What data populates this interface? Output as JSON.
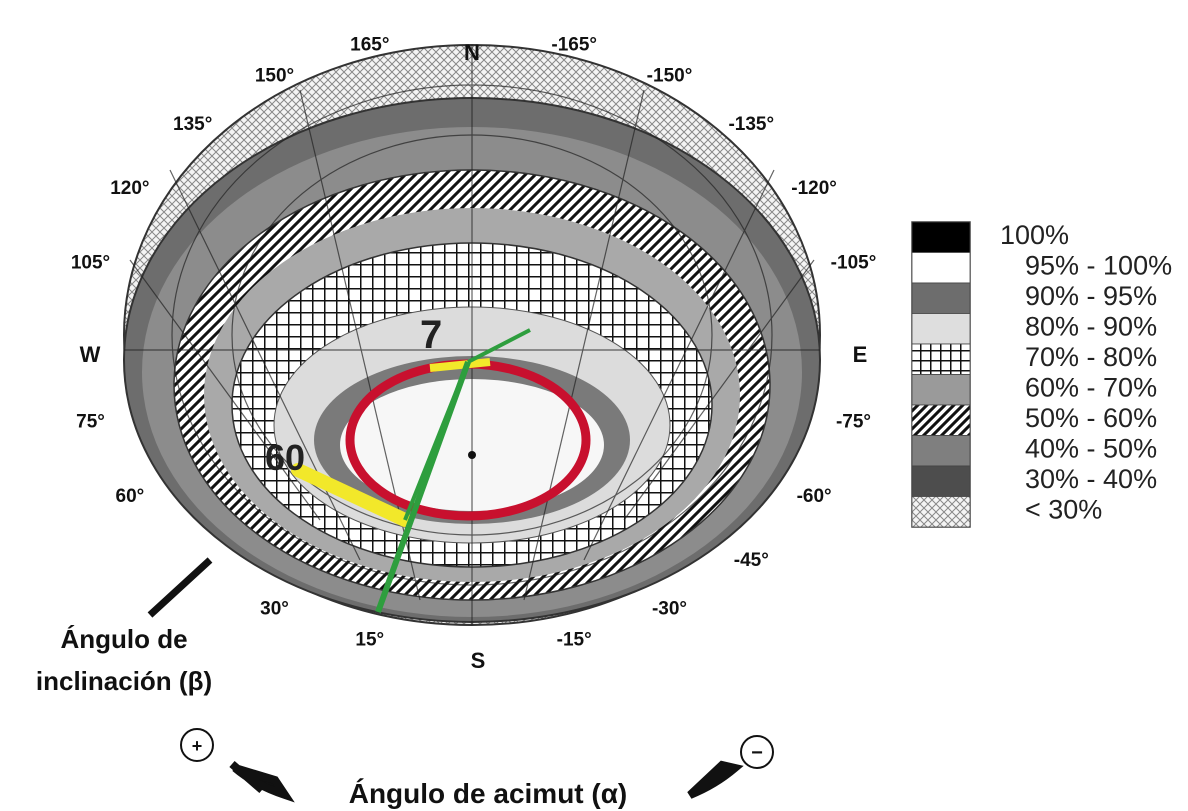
{
  "diagram": {
    "cardinals": {
      "north": "N",
      "south": "S",
      "east": "E",
      "west": "W"
    },
    "azimuth_ticks": [
      {
        "label": "165°",
        "deg": 165
      },
      {
        "label": "150°",
        "deg": 150
      },
      {
        "label": "135°",
        "deg": 135
      },
      {
        "label": "120°",
        "deg": 120
      },
      {
        "label": "105°",
        "deg": 105
      },
      {
        "label": "75°",
        "deg": 75
      },
      {
        "label": "60°",
        "deg": 60
      },
      {
        "label": "30°",
        "deg": 30
      },
      {
        "label": "15°",
        "deg": 15
      },
      {
        "label": "-165°",
        "deg": -165
      },
      {
        "label": "-150°",
        "deg": -150
      },
      {
        "label": "-135°",
        "deg": -135
      },
      {
        "label": "-120°",
        "deg": -120
      },
      {
        "label": "-105°",
        "deg": -105
      },
      {
        "label": "-75°",
        "deg": -75
      },
      {
        "label": "-60°",
        "deg": -60
      },
      {
        "label": "-45°",
        "deg": -45
      },
      {
        "label": "-30°",
        "deg": -30
      },
      {
        "label": "-15°",
        "deg": -15
      }
    ],
    "annotations": {
      "tilt_marker": "7",
      "azimuth_marker": "60"
    },
    "tilt_label_line1": "Ángulo de",
    "tilt_label_line2": "inclinación (β)",
    "azimuth_label": "Ángulo de acimut (α)",
    "plus_sign": "+",
    "minus_sign": "−"
  },
  "legend": {
    "items": [
      {
        "label": "100%",
        "pattern": "solid-black"
      },
      {
        "label": "95% - 100%",
        "pattern": "white"
      },
      {
        "label": "90% - 95%",
        "pattern": "dark-gray"
      },
      {
        "label": "80% - 90%",
        "pattern": "light-gray"
      },
      {
        "label": "70% - 80%",
        "pattern": "grid"
      },
      {
        "label": "60% - 70%",
        "pattern": "mid-gray"
      },
      {
        "label": "50% - 60%",
        "pattern": "diagonal"
      },
      {
        "label": "40% - 50%",
        "pattern": "gray"
      },
      {
        "label": "30% - 40%",
        "pattern": "darker-gray"
      },
      {
        "label": "< 30%",
        "pattern": "crosshatch"
      }
    ]
  },
  "colors": {
    "highlight_ring": "#c8102e",
    "highlight_line": "#2e9e3e",
    "highlight_band": "#f2e82a"
  }
}
